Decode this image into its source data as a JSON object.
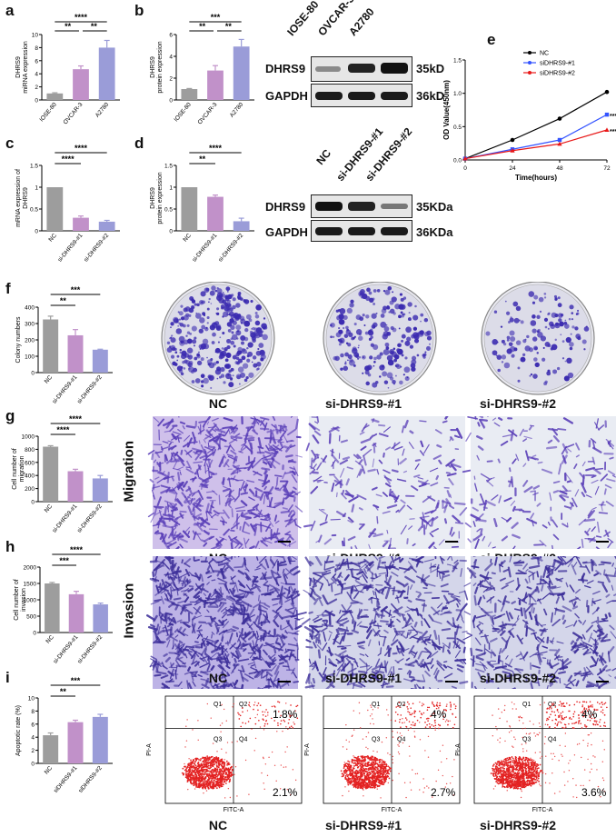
{
  "panel_labels": [
    "a",
    "b",
    "c",
    "d",
    "e",
    "f",
    "g",
    "h",
    "i"
  ],
  "colors": {
    "gray": "#9d9d9d",
    "purple": "#c191c9",
    "blue": "#9a9cd8",
    "stain": "#3b2bb0",
    "red": "#e32222",
    "ctrl": "#000000",
    "si1": "#3353ff",
    "si2": "#e81818"
  },
  "groups_abc": {
    "a_b": [
      "IOSE-80",
      "OVCAR-3",
      "A2780"
    ],
    "si": [
      "NC",
      "si-DHRS9-#1",
      "si-DHRS9-#2"
    ],
    "si_alt": [
      "NC",
      "siDHRS9-#1",
      "siDHRS9-#2"
    ]
  },
  "sig": {
    "s4": "****",
    "s3": "***",
    "s2": "**"
  },
  "western_b": {
    "cols": [
      "IOSE-80",
      "OVCAR-3",
      "A2780"
    ],
    "rows": [
      "DHRS9",
      "GAPDH"
    ],
    "sizes": [
      "35kD",
      "36kD"
    ]
  },
  "western_d": {
    "cols": [
      "NC",
      "si-DHRS9-#1",
      "si-DHRS9-#2"
    ],
    "rows": [
      "DHRS9",
      "GAPDH"
    ],
    "sizes": [
      "35KDa",
      "36KDa"
    ]
  },
  "photo_captions": [
    "NC",
    "si-DHRS9-#1",
    "si-DHRS9-#2"
  ],
  "side_labels": {
    "migration": "Migration",
    "invasion": "Invasion"
  },
  "flow": {
    "quadrants": [
      "Q1",
      "Q2",
      "Q3",
      "Q4"
    ],
    "xlab": "FITC-A",
    "ylab": "PI-A",
    "upper": [
      "1.8%",
      "4%",
      "4%"
    ],
    "lower": [
      "2.1%",
      "2.7%",
      "3.6%"
    ]
  },
  "chart_data": [
    {
      "id": "a",
      "type": "bar",
      "ylabel": "DHRS9\nmiRNA expression",
      "categories": [
        "IOSE-80",
        "OVCAR-3",
        "A2780"
      ],
      "values": [
        1.0,
        4.7,
        8.0
      ],
      "errors": [
        0.1,
        0.5,
        1.1
      ],
      "ylim": [
        0,
        10
      ],
      "yticks": [
        0,
        2,
        4,
        6,
        8,
        10
      ],
      "sig": [
        "****",
        "**",
        "**"
      ]
    },
    {
      "id": "b",
      "type": "bar",
      "ylabel": "DHRS9\nprotein expression",
      "categories": [
        "IOSE-80",
        "OVCAR-3",
        "A2780"
      ],
      "values": [
        1.0,
        2.7,
        4.9
      ],
      "errors": [
        0.05,
        0.45,
        0.65
      ],
      "ylim": [
        0,
        6
      ],
      "yticks": [
        0,
        2,
        4,
        6
      ],
      "sig": [
        "***",
        "**",
        "**"
      ]
    },
    {
      "id": "c",
      "type": "bar",
      "ylabel": "mRNA expression of\nDHRS9",
      "categories": [
        "NC",
        "si-DHRS9-#1",
        "si-DHRS9-#2"
      ],
      "values": [
        1.0,
        0.3,
        0.21
      ],
      "errors": [
        0.0,
        0.04,
        0.03
      ],
      "ylim": [
        0,
        1.5
      ],
      "yticks": [
        0.0,
        0.5,
        1.0,
        1.5
      ],
      "sig": [
        "****",
        "****"
      ]
    },
    {
      "id": "d",
      "type": "bar",
      "ylabel": "DHRS9\nprotein expression",
      "categories": [
        "NC",
        "si-DHRS9-#1",
        "si-DHRS9-#2"
      ],
      "values": [
        1.0,
        0.78,
        0.22
      ],
      "errors": [
        0.0,
        0.04,
        0.07
      ],
      "ylim": [
        0,
        1.5
      ],
      "yticks": [
        0.0,
        0.5,
        1.0,
        1.5
      ],
      "sig": [
        "**",
        "****"
      ]
    },
    {
      "id": "e",
      "type": "line",
      "xlabel": "Time(hours)",
      "ylabel": "OD Value(450nm)",
      "x": [
        0,
        24,
        48,
        72
      ],
      "xlim": [
        0,
        72
      ],
      "ylim": [
        0,
        1.5
      ],
      "yticks": [
        0,
        0.5,
        1.0,
        1.5
      ],
      "series": [
        {
          "name": "NC",
          "values": [
            0.02,
            0.3,
            0.62,
            1.02
          ]
        },
        {
          "name": "siDHRS9-#1",
          "values": [
            0.02,
            0.16,
            0.3,
            0.68
          ]
        },
        {
          "name": "siDHRS9-#2",
          "values": [
            0.02,
            0.14,
            0.24,
            0.45
          ]
        }
      ],
      "sig": [
        "****",
        "****"
      ],
      "legend": "top-right"
    },
    {
      "id": "f",
      "type": "bar",
      "ylabel": "Colony numbers",
      "categories": [
        "NC",
        "si-DHRS9-#1",
        "si-DHRS9-#2"
      ],
      "values": [
        325,
        228,
        140
      ],
      "errors": [
        20,
        35,
        3
      ],
      "ylim": [
        0,
        400
      ],
      "yticks": [
        0,
        100,
        200,
        300,
        400
      ],
      "sig": [
        "**",
        "***"
      ]
    },
    {
      "id": "g",
      "type": "bar",
      "ylabel": "Cell number of\nmigration",
      "categories": [
        "NC",
        "si-DHRS9-#1",
        "si-DHRS9-#2"
      ],
      "values": [
        840,
        465,
        355
      ],
      "errors": [
        15,
        30,
        45
      ],
      "ylim": [
        0,
        1000
      ],
      "yticks": [
        0,
        200,
        400,
        600,
        800,
        1000
      ],
      "sig": [
        "****",
        "****"
      ]
    },
    {
      "id": "h",
      "type": "bar",
      "ylabel": "Cell number of\ninvasion",
      "categories": [
        "NC",
        "si-DHRS9-#1",
        "si-DHRS9-#2"
      ],
      "values": [
        1500,
        1170,
        860
      ],
      "errors": [
        30,
        90,
        40
      ],
      "ylim": [
        0,
        2000
      ],
      "yticks": [
        0,
        500,
        1000,
        1500,
        2000
      ],
      "sig": [
        "***",
        "****"
      ]
    },
    {
      "id": "i",
      "type": "bar",
      "ylabel": "Apoptotic rate (%)",
      "categories": [
        "NC",
        "siDHRS9-#1",
        "siDHRS9-#2"
      ],
      "values": [
        4.3,
        6.3,
        7.1
      ],
      "errors": [
        0.35,
        0.3,
        0.4
      ],
      "ylim": [
        0,
        10
      ],
      "yticks": [
        0,
        2,
        4,
        6,
        8,
        10
      ],
      "sig": [
        "**",
        "***"
      ]
    }
  ]
}
